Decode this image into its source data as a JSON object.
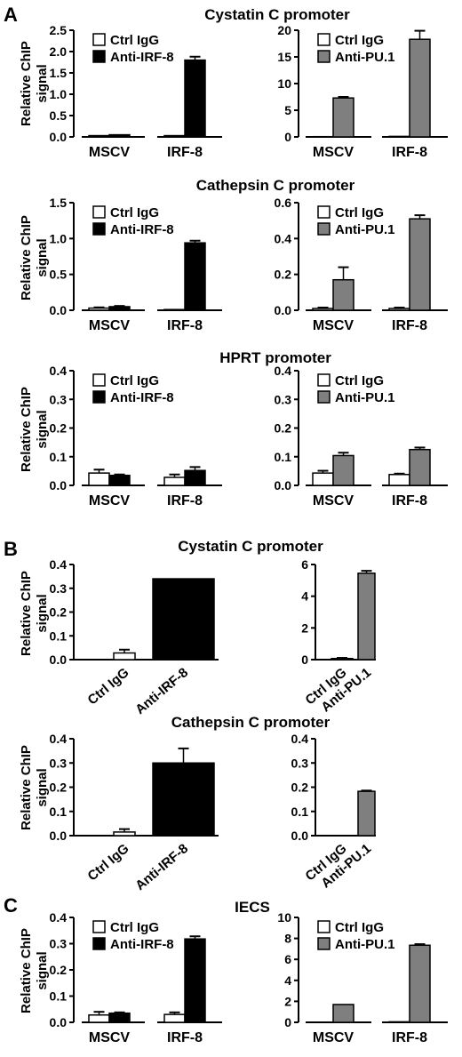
{
  "figure": {
    "panel_letters": [
      "A",
      "B",
      "C"
    ],
    "section_titles": [
      "Cystatin C promoter",
      "Cathepsin C promoter",
      "HPRT promoter",
      "Cystatin C promoter",
      "Cathepsin C promoter",
      "IECS"
    ],
    "ylabel_line1": "Relative ChIP",
    "ylabel_line2": "signal"
  },
  "colors": {
    "ctrl": "#ffffff",
    "irf8": "#000000",
    "pu1": "#7f7f7f",
    "axis": "#000000"
  },
  "chart_data": [
    {
      "type": "bar",
      "section": "Cystatin C promoter",
      "ylabel": "Relative ChIP signal",
      "ylim": [
        0,
        2.5
      ],
      "yticks": [
        "0.0",
        "0.5",
        "1.0",
        "1.5",
        "2.0",
        "2.5"
      ],
      "categories": [
        "MSCV",
        "IRF-8"
      ],
      "legend": [
        "Ctrl IgG",
        "Anti-IRF-8"
      ],
      "series": [
        {
          "name": "Ctrl IgG",
          "values": [
            0.03,
            0.03
          ],
          "errors": [
            0,
            0
          ]
        },
        {
          "name": "Anti-IRF-8",
          "values": [
            0.05,
            1.8
          ],
          "errors": [
            0,
            0.08
          ]
        }
      ]
    },
    {
      "type": "bar",
      "section": "Cystatin C promoter",
      "ylim": [
        0,
        20
      ],
      "yticks": [
        "0",
        "5",
        "10",
        "15",
        "20"
      ],
      "categories": [
        "MSCV",
        "IRF-8"
      ],
      "legend": [
        "Ctrl IgG",
        "Anti-PU.1"
      ],
      "series": [
        {
          "name": "Ctrl IgG",
          "values": [
            0.05,
            0.1
          ],
          "errors": [
            0,
            0
          ]
        },
        {
          "name": "Anti-PU.1",
          "values": [
            7.3,
            18.3
          ],
          "errors": [
            0.2,
            1.6
          ]
        }
      ]
    },
    {
      "type": "bar",
      "section": "Cathepsin C promoter",
      "ylabel": "Relative ChIP signal",
      "ylim": [
        0,
        1.5
      ],
      "yticks": [
        "0.0",
        "0.5",
        "1.0",
        "1.5"
      ],
      "categories": [
        "MSCV",
        "IRF-8"
      ],
      "legend": [
        "Ctrl IgG",
        "Anti-IRF-8"
      ],
      "series": [
        {
          "name": "Ctrl IgG",
          "values": [
            0.03,
            0.01
          ],
          "errors": [
            0.01,
            0
          ]
        },
        {
          "name": "Anti-IRF-8",
          "values": [
            0.05,
            0.94
          ],
          "errors": [
            0.01,
            0.03
          ]
        }
      ]
    },
    {
      "type": "bar",
      "section": "Cathepsin C promoter",
      "ylim": [
        0,
        0.6
      ],
      "yticks": [
        "0.0",
        "0.2",
        "0.4",
        "0.6"
      ],
      "categories": [
        "MSCV",
        "IRF-8"
      ],
      "legend": [
        "Ctrl IgG",
        "Anti-PU.1"
      ],
      "series": [
        {
          "name": "Ctrl IgG",
          "values": [
            0.01,
            0.01
          ],
          "errors": [
            0.005,
            0.005
          ]
        },
        {
          "name": "Anti-PU.1",
          "values": [
            0.17,
            0.51
          ],
          "errors": [
            0.07,
            0.02
          ]
        }
      ]
    },
    {
      "type": "bar",
      "section": "HPRT promoter",
      "ylabel": "Relative ChIP signal",
      "ylim": [
        0,
        0.4
      ],
      "yticks": [
        "0.0",
        "0.1",
        "0.2",
        "0.3",
        "0.4"
      ],
      "categories": [
        "MSCV",
        "IRF-8"
      ],
      "legend": [
        "Ctrl IgG",
        "Anti-IRF-8"
      ],
      "series": [
        {
          "name": "Ctrl IgG",
          "values": [
            0.043,
            0.028
          ],
          "errors": [
            0.012,
            0.01
          ]
        },
        {
          "name": "Anti-IRF-8",
          "values": [
            0.035,
            0.052
          ],
          "errors": [
            0.003,
            0.012
          ]
        }
      ]
    },
    {
      "type": "bar",
      "section": "HPRT promoter",
      "ylim": [
        0,
        0.4
      ],
      "yticks": [
        "0.0",
        "0.1",
        "0.2",
        "0.3",
        "0.4"
      ],
      "categories": [
        "MSCV",
        "IRF-8"
      ],
      "legend": [
        "Ctrl IgG",
        "Anti-PU.1"
      ],
      "series": [
        {
          "name": "Ctrl IgG",
          "values": [
            0.043,
            0.038
          ],
          "errors": [
            0.008,
            0.003
          ]
        },
        {
          "name": "Anti-PU.1",
          "values": [
            0.104,
            0.125
          ],
          "errors": [
            0.01,
            0.007
          ]
        }
      ]
    },
    {
      "type": "bar",
      "section": "Cystatin C promoter",
      "ylabel": "Relative ChIP signal",
      "ylim": [
        0,
        0.4
      ],
      "yticks": [
        "0.0",
        "0.1",
        "0.2",
        "0.3",
        "0.4"
      ],
      "categories": [
        "Ctrl IgG",
        "Anti-IRF-8"
      ],
      "values": [
        0.028,
        0.34
      ],
      "errors": [
        0.014,
        0
      ]
    },
    {
      "type": "bar",
      "section": "Cystatin C promoter",
      "ylim": [
        0,
        6
      ],
      "yticks": [
        "0",
        "2",
        "4",
        "6"
      ],
      "categories": [
        "Ctrl IgG",
        "Anti-PU.1"
      ],
      "values": [
        0.07,
        5.45
      ],
      "errors": [
        0.04,
        0.15
      ]
    },
    {
      "type": "bar",
      "section": "Cathepsin C promoter",
      "ylabel": "Relative ChIP signal",
      "ylim": [
        0,
        0.4
      ],
      "yticks": [
        "0.0",
        "0.1",
        "0.2",
        "0.3",
        "0.4"
      ],
      "categories": [
        "Ctrl IgG",
        "Anti-IRF-8"
      ],
      "values": [
        0.015,
        0.3
      ],
      "errors": [
        0.012,
        0.06
      ]
    },
    {
      "type": "bar",
      "section": "Cathepsin C promoter",
      "ylim": [
        0,
        0.4
      ],
      "yticks": [
        "0.0",
        "0.1",
        "0.2",
        "0.3",
        "0.4"
      ],
      "categories": [
        "Ctrl IgG",
        "Anti-PU.1"
      ],
      "values": [
        0.0,
        0.183
      ],
      "errors": [
        0,
        0.003
      ]
    },
    {
      "type": "bar",
      "section": "IECS",
      "ylabel": "Relative ChIP signal",
      "ylim": [
        0,
        0.4
      ],
      "yticks": [
        "0.0",
        "0.1",
        "0.2",
        "0.3",
        "0.4"
      ],
      "categories": [
        "MSCV",
        "IRF-8"
      ],
      "legend": [
        "Ctrl IgG",
        "Anti-IRF-8"
      ],
      "series": [
        {
          "name": "Ctrl IgG",
          "values": [
            0.028,
            0.03
          ],
          "errors": [
            0.012,
            0.008
          ]
        },
        {
          "name": "Anti-IRF-8",
          "values": [
            0.035,
            0.318
          ],
          "errors": [
            0.003,
            0.01
          ]
        }
      ]
    },
    {
      "type": "bar",
      "section": "IECS",
      "ylim": [
        0,
        10
      ],
      "yticks": [
        "0",
        "2",
        "4",
        "6",
        "8",
        "10"
      ],
      "categories": [
        "MSCV",
        "IRF-8"
      ],
      "legend": [
        "Ctrl IgG",
        "Anti-PU.1"
      ],
      "series": [
        {
          "name": "Ctrl IgG",
          "values": [
            0.02,
            0.05
          ],
          "errors": [
            0,
            0
          ]
        },
        {
          "name": "Anti-PU.1",
          "values": [
            1.7,
            7.35
          ],
          "errors": [
            0,
            0.1
          ]
        }
      ]
    }
  ]
}
